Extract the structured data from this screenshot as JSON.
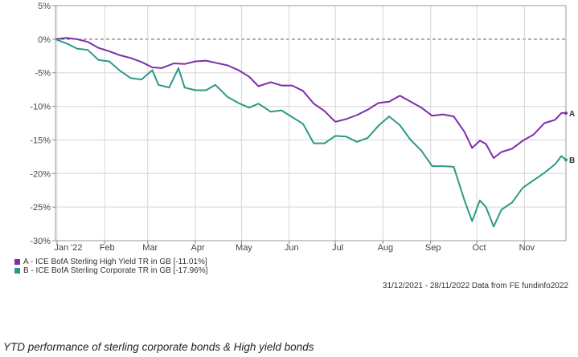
{
  "chart_data": {
    "type": "line",
    "ylim": [
      -30,
      5
    ],
    "y_ticks": [
      5,
      0,
      -5,
      -10,
      -15,
      -20,
      -25,
      -30
    ],
    "y_tick_labels": [
      "5%",
      "0%",
      "-5%",
      "-10%",
      "-15%",
      "-20%",
      "-25%",
      "-30%"
    ],
    "x_range": [
      "2021-12-31",
      "2022-11-28"
    ],
    "x_ticks": [
      {
        "date": "2022-01-01",
        "label": "Jan '22"
      },
      {
        "date": "2022-02-01",
        "label": "Feb"
      },
      {
        "date": "2022-03-01",
        "label": "Mar"
      },
      {
        "date": "2022-04-01",
        "label": "Apr"
      },
      {
        "date": "2022-05-01",
        "label": "May"
      },
      {
        "date": "2022-06-01",
        "label": "Jun"
      },
      {
        "date": "2022-07-01",
        "label": "Jul"
      },
      {
        "date": "2022-08-01",
        "label": "Aug"
      },
      {
        "date": "2022-09-01",
        "label": "Sep"
      },
      {
        "date": "2022-10-01",
        "label": "Oct"
      },
      {
        "date": "2022-11-01",
        "label": "Nov"
      }
    ],
    "grid": true,
    "zero_line": "dashed",
    "legend_position": "bottom-left",
    "series": [
      {
        "name": "A - ICE BofA Sterling High Yield TR in GB [-11.01%]",
        "end_label": "A",
        "color": "#7b2fa8",
        "points": [
          [
            "2021-12-31",
            0
          ],
          [
            "2022-01-07",
            0.2
          ],
          [
            "2022-01-14",
            0.0
          ],
          [
            "2022-01-21",
            -0.4
          ],
          [
            "2022-01-28",
            -1.3
          ],
          [
            "2022-02-04",
            -1.8
          ],
          [
            "2022-02-11",
            -2.4
          ],
          [
            "2022-02-18",
            -2.8
          ],
          [
            "2022-02-25",
            -3.4
          ],
          [
            "2022-03-04",
            -4.2
          ],
          [
            "2022-03-10",
            -4.3
          ],
          [
            "2022-03-18",
            -3.6
          ],
          [
            "2022-03-25",
            -3.7
          ],
          [
            "2022-04-01",
            -3.3
          ],
          [
            "2022-04-08",
            -3.2
          ],
          [
            "2022-04-14",
            -3.5
          ],
          [
            "2022-04-22",
            -3.9
          ],
          [
            "2022-04-29",
            -4.6
          ],
          [
            "2022-05-06",
            -5.6
          ],
          [
            "2022-05-12",
            -7.0
          ],
          [
            "2022-05-20",
            -6.4
          ],
          [
            "2022-05-27",
            -6.9
          ],
          [
            "2022-06-03",
            -6.9
          ],
          [
            "2022-06-10",
            -7.7
          ],
          [
            "2022-06-17",
            -9.6
          ],
          [
            "2022-06-24",
            -10.7
          ],
          [
            "2022-07-01",
            -12.3
          ],
          [
            "2022-07-08",
            -11.9
          ],
          [
            "2022-07-15",
            -11.3
          ],
          [
            "2022-07-22",
            -10.5
          ],
          [
            "2022-07-29",
            -9.5
          ],
          [
            "2022-08-05",
            -9.3
          ],
          [
            "2022-08-12",
            -8.4
          ],
          [
            "2022-08-19",
            -9.3
          ],
          [
            "2022-08-26",
            -10.2
          ],
          [
            "2022-09-02",
            -11.4
          ],
          [
            "2022-09-09",
            -11.2
          ],
          [
            "2022-09-16",
            -11.5
          ],
          [
            "2022-09-23",
            -13.8
          ],
          [
            "2022-09-28",
            -16.2
          ],
          [
            "2022-10-03",
            -15.1
          ],
          [
            "2022-10-07",
            -15.6
          ],
          [
            "2022-10-12",
            -17.7
          ],
          [
            "2022-10-17",
            -16.8
          ],
          [
            "2022-10-24",
            -16.3
          ],
          [
            "2022-10-31",
            -15.1
          ],
          [
            "2022-11-07",
            -14.2
          ],
          [
            "2022-11-14",
            -12.5
          ],
          [
            "2022-11-21",
            -12.0
          ],
          [
            "2022-11-25",
            -11.0
          ],
          [
            "2022-11-28",
            -11.0
          ]
        ]
      },
      {
        "name": "B - ICE BofA Sterling Corporate TR in GB [-17.96%]",
        "end_label": "B",
        "color": "#2a9a86",
        "points": [
          [
            "2021-12-31",
            0
          ],
          [
            "2022-01-07",
            -0.6
          ],
          [
            "2022-01-14",
            -1.4
          ],
          [
            "2022-01-21",
            -1.6
          ],
          [
            "2022-01-28",
            -3.1
          ],
          [
            "2022-02-04",
            -3.3
          ],
          [
            "2022-02-11",
            -4.7
          ],
          [
            "2022-02-18",
            -5.8
          ],
          [
            "2022-02-25",
            -6.0
          ],
          [
            "2022-03-04",
            -4.6
          ],
          [
            "2022-03-08",
            -6.8
          ],
          [
            "2022-03-15",
            -7.2
          ],
          [
            "2022-03-21",
            -4.3
          ],
          [
            "2022-03-25",
            -7.2
          ],
          [
            "2022-04-01",
            -7.6
          ],
          [
            "2022-04-08",
            -7.6
          ],
          [
            "2022-04-14",
            -6.8
          ],
          [
            "2022-04-22",
            -8.6
          ],
          [
            "2022-04-29",
            -9.5
          ],
          [
            "2022-05-06",
            -10.2
          ],
          [
            "2022-05-12",
            -9.6
          ],
          [
            "2022-05-20",
            -10.8
          ],
          [
            "2022-05-27",
            -10.6
          ],
          [
            "2022-06-03",
            -11.6
          ],
          [
            "2022-06-10",
            -12.6
          ],
          [
            "2022-06-17",
            -15.5
          ],
          [
            "2022-06-24",
            -15.5
          ],
          [
            "2022-07-01",
            -14.4
          ],
          [
            "2022-07-08",
            -14.5
          ],
          [
            "2022-07-15",
            -15.3
          ],
          [
            "2022-07-22",
            -14.7
          ],
          [
            "2022-07-29",
            -12.9
          ],
          [
            "2022-08-05",
            -11.5
          ],
          [
            "2022-08-12",
            -12.8
          ],
          [
            "2022-08-19",
            -15.0
          ],
          [
            "2022-08-26",
            -16.6
          ],
          [
            "2022-09-02",
            -18.9
          ],
          [
            "2022-09-09",
            -18.9
          ],
          [
            "2022-09-16",
            -19.0
          ],
          [
            "2022-09-23",
            -24.0
          ],
          [
            "2022-09-28",
            -27.1
          ],
          [
            "2022-10-03",
            -24.0
          ],
          [
            "2022-10-07",
            -25.0
          ],
          [
            "2022-10-12",
            -27.9
          ],
          [
            "2022-10-17",
            -25.4
          ],
          [
            "2022-10-24",
            -24.3
          ],
          [
            "2022-10-31",
            -22.1
          ],
          [
            "2022-11-07",
            -21.0
          ],
          [
            "2022-11-14",
            -19.9
          ],
          [
            "2022-11-21",
            -18.6
          ],
          [
            "2022-11-25",
            -17.4
          ],
          [
            "2022-11-28",
            -17.96
          ]
        ]
      }
    ]
  },
  "source_text": "31/12/2021 - 28/11/2022 Data from FE fundinfo2022",
  "caption": "YTD performance of sterling corporate bonds & High yield bonds"
}
